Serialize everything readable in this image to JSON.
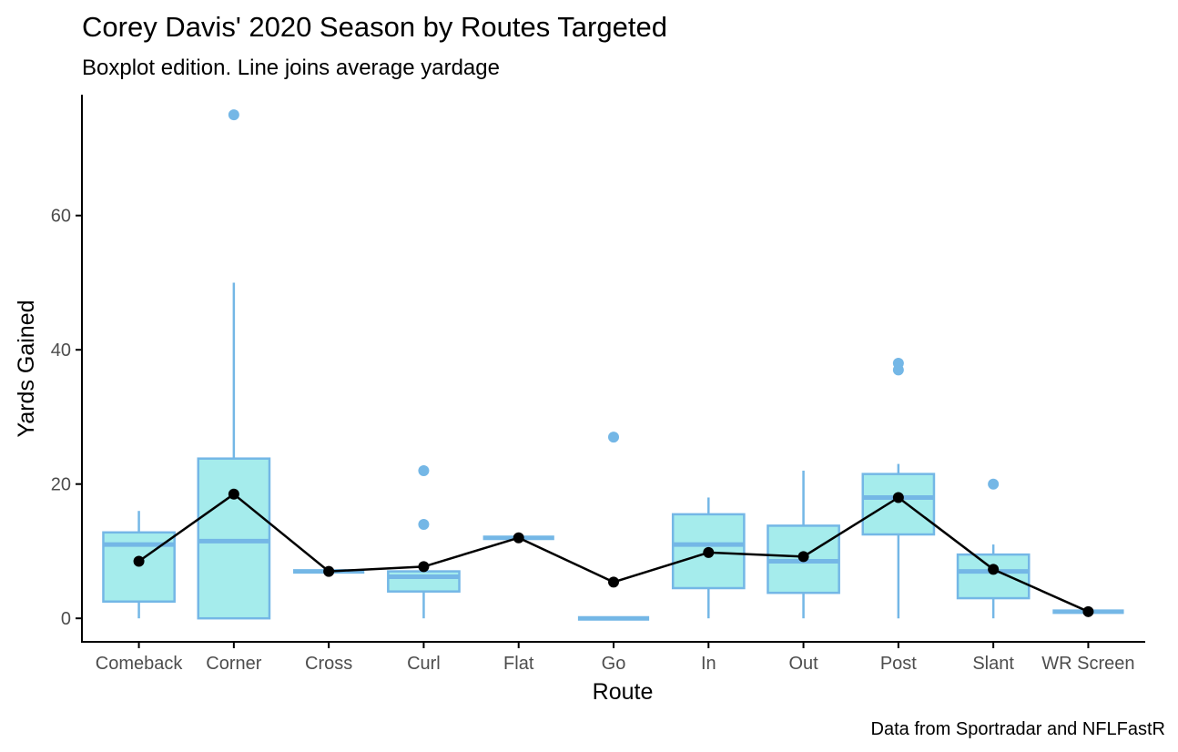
{
  "chart_data": {
    "type": "boxplot",
    "title": "Corey Davis' 2020 Season by Routes Targeted",
    "subtitle": "Boxplot edition. Line joins average yardage",
    "xlabel": "Route",
    "ylabel": "Yards Gained",
    "caption": "Data from Sportradar and NFLFastR",
    "ylim": [
      -3.5,
      78
    ],
    "yticks": [
      0,
      20,
      40,
      60
    ],
    "grid": false,
    "box_fill": "#a5ecec",
    "box_stroke": "#74b7e6",
    "mean_color": "#000000",
    "categories": [
      "Comeback",
      "Corner",
      "Cross",
      "Curl",
      "Flat",
      "Go",
      "In",
      "Out",
      "Post",
      "Slant",
      "WR Screen"
    ],
    "boxes": [
      {
        "route": "Comeback",
        "lower_whisker": 0,
        "q1": 2.5,
        "median": 11,
        "q3": 12.8,
        "upper_whisker": 16,
        "outliers": []
      },
      {
        "route": "Corner",
        "lower_whisker": 0,
        "q1": 0,
        "median": 11.5,
        "q3": 23.8,
        "upper_whisker": 50,
        "outliers": [
          75
        ]
      },
      {
        "route": "Cross",
        "lower_whisker": 7,
        "q1": 7,
        "median": 7,
        "q3": 7,
        "upper_whisker": 7,
        "outliers": []
      },
      {
        "route": "Curl",
        "lower_whisker": 0,
        "q1": 4,
        "median": 6.2,
        "q3": 7,
        "upper_whisker": 7,
        "outliers": [
          14,
          22
        ]
      },
      {
        "route": "Flat",
        "lower_whisker": 12,
        "q1": 12,
        "median": 12,
        "q3": 12,
        "upper_whisker": 12,
        "outliers": []
      },
      {
        "route": "Go",
        "lower_whisker": 0,
        "q1": 0,
        "median": 0,
        "q3": 0,
        "upper_whisker": 0,
        "outliers": [
          27
        ]
      },
      {
        "route": "In",
        "lower_whisker": 0,
        "q1": 4.5,
        "median": 11,
        "q3": 15.5,
        "upper_whisker": 18,
        "outliers": []
      },
      {
        "route": "Out",
        "lower_whisker": 0,
        "q1": 3.8,
        "median": 8.5,
        "q3": 13.8,
        "upper_whisker": 22,
        "outliers": []
      },
      {
        "route": "Post",
        "lower_whisker": 0,
        "q1": 12.5,
        "median": 18,
        "q3": 21.5,
        "upper_whisker": 23,
        "outliers": [
          37,
          38
        ]
      },
      {
        "route": "Slant",
        "lower_whisker": 0,
        "q1": 3,
        "median": 7,
        "q3": 9.5,
        "upper_whisker": 11,
        "outliers": [
          20
        ]
      },
      {
        "route": "WR Screen",
        "lower_whisker": 1,
        "q1": 1,
        "median": 1,
        "q3": 1,
        "upper_whisker": 1,
        "outliers": []
      }
    ],
    "means": [
      8.5,
      18.5,
      7,
      7.7,
      12,
      5.4,
      9.8,
      9.2,
      18,
      7.3,
      1
    ]
  }
}
